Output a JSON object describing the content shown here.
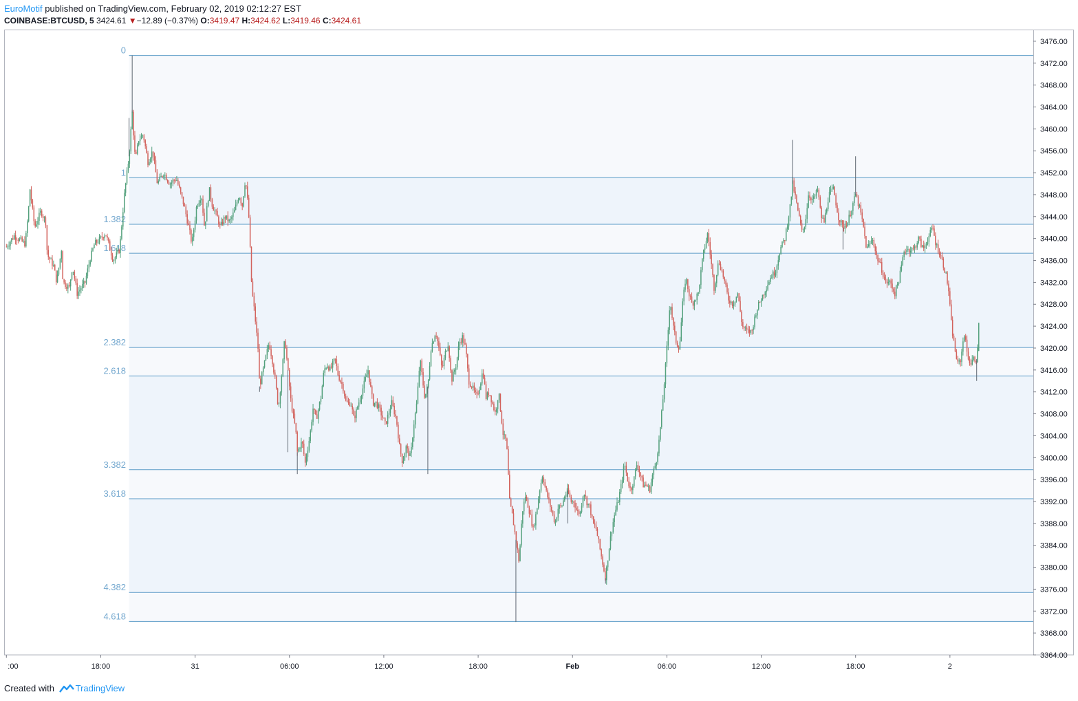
{
  "header": {
    "author": "EuroMotif",
    "published_text": " published on TradingView.com, February 02, 2019 02:12:27 EST",
    "symbol": "COINBASE:BTCUSD, 5",
    "last_price": "3424.61",
    "change": "−12.89 (−0.37%)",
    "o_label": "O:",
    "o_value": "3419.47",
    "h_label": "H:",
    "h_value": "3424.62",
    "l_label": "L:",
    "l_value": "3419.46",
    "c_label": "C:",
    "c_value": "3424.61"
  },
  "footer": {
    "created_with": "Created with",
    "brand": "TradingView"
  },
  "colors": {
    "up": "#53a07c",
    "down": "#d2625c",
    "fib_line": "#5b9bc7",
    "fib_label": "#74a8cf",
    "fib_fill": "#eef4fb"
  },
  "chart_data": {
    "type": "candlestick",
    "symbol": "COINBASE:BTCUSD",
    "interval": "5",
    "y_axis": {
      "min": 3364,
      "max": 3478,
      "ticks": [
        3364,
        3368,
        3372,
        3376,
        3380,
        3384,
        3388,
        3392,
        3396,
        3400,
        3404,
        3408,
        3412,
        3416,
        3420,
        3424,
        3428,
        3432,
        3436,
        3440,
        3444,
        3448,
        3452,
        3456,
        3460,
        3464,
        3468,
        3472,
        3476
      ],
      "tick_labels": [
        "3364.00",
        "3368.00",
        "3372.00",
        "3376.00",
        "3380.00",
        "3384.00",
        "3388.00",
        "3392.00",
        "3396.00",
        "3400.00",
        "3404.00",
        "3408.00",
        "3412.00",
        "3416.00",
        "3420.00",
        "3424.00",
        "3428.00",
        "3432.00",
        "3436.00",
        "3440.00",
        "3444.00",
        "3448.00",
        "3452.00",
        "3456.00",
        "3460.00",
        "3464.00",
        "3468.00",
        "3472.00",
        "3476.00"
      ],
      "position": "right"
    },
    "x_axis": {
      "labels": [
        ":00",
        "18:00",
        "31",
        "06:00",
        "12:00",
        "18:00",
        "Feb",
        "06:00",
        "12:00",
        "18:00",
        "2"
      ],
      "label_hours": [
        0,
        6,
        12,
        18,
        24,
        30,
        36,
        42,
        48,
        54,
        60
      ],
      "bold": [
        false,
        false,
        false,
        false,
        false,
        false,
        true,
        false,
        false,
        false,
        false
      ],
      "visible_range_hours": [
        -0.1,
        65.3
      ]
    },
    "fibonacci": {
      "levels": [
        {
          "label": "0",
          "price": 3473.4
        },
        {
          "label": "1",
          "price": 3451.1
        },
        {
          "label": "1.382",
          "price": 3442.6
        },
        {
          "label": "1.618",
          "price": 3437.3
        },
        {
          "label": "2.382",
          "price": 3420.1
        },
        {
          "label": "2.618",
          "price": 3414.9
        },
        {
          "label": "3.382",
          "price": 3397.8
        },
        {
          "label": "3.618",
          "price": 3392.5
        },
        {
          "label": "4.382",
          "price": 3375.4
        },
        {
          "label": "4.618",
          "price": 3370.1
        }
      ],
      "start_hour": 7.8,
      "label_hour": 7.6,
      "shaded_pairs": [
        [
          1,
          2
        ],
        [
          3,
          4
        ],
        [
          5,
          6
        ],
        [
          7,
          8
        ]
      ]
    },
    "price_path": [
      [
        0.0,
        3438.5
      ],
      [
        0.5,
        3440.5
      ],
      [
        1.2,
        3439
      ],
      [
        1.4,
        3445
      ],
      [
        1.5,
        3449
      ],
      [
        1.8,
        3442
      ],
      [
        2.2,
        3445
      ],
      [
        2.5,
        3443
      ],
      [
        2.6,
        3437
      ],
      [
        3.0,
        3435
      ],
      [
        3.2,
        3432
      ],
      [
        3.5,
        3438
      ],
      [
        3.6,
        3432
      ],
      [
        4.0,
        3431
      ],
      [
        4.2,
        3435
      ],
      [
        4.5,
        3430
      ],
      [
        5.0,
        3432
      ],
      [
        5.3,
        3436
      ],
      [
        5.6,
        3439
      ],
      [
        6.0,
        3440
      ],
      [
        6.3,
        3441
      ],
      [
        6.6,
        3438
      ],
      [
        6.8,
        3436
      ],
      [
        7.2,
        3438
      ],
      [
        7.5,
        3448
      ],
      [
        7.8,
        3455
      ],
      [
        8.0,
        3463
      ],
      [
        8.2,
        3454
      ],
      [
        8.4,
        3458
      ],
      [
        8.7,
        3459
      ],
      [
        9.0,
        3454
      ],
      [
        9.3,
        3456
      ],
      [
        9.6,
        3450
      ],
      [
        10.0,
        3452
      ],
      [
        10.4,
        3450
      ],
      [
        10.8,
        3451
      ],
      [
        11.0,
        3449
      ],
      [
        11.3,
        3446
      ],
      [
        11.6,
        3442
      ],
      [
        11.8,
        3439
      ],
      [
        12.1,
        3446
      ],
      [
        12.4,
        3448
      ],
      [
        12.6,
        3442
      ],
      [
        12.9,
        3449
      ],
      [
        13.1,
        3446
      ],
      [
        13.4,
        3444
      ],
      [
        13.6,
        3442
      ],
      [
        13.9,
        3444
      ],
      [
        14.2,
        3443
      ],
      [
        14.5,
        3445
      ],
      [
        14.8,
        3448
      ],
      [
        15.0,
        3446
      ],
      [
        15.2,
        3451
      ],
      [
        15.4,
        3445
      ],
      [
        15.6,
        3431
      ],
      [
        15.8,
        3426
      ],
      [
        16.0,
        3420
      ],
      [
        16.1,
        3413
      ],
      [
        16.4,
        3417
      ],
      [
        16.7,
        3421
      ],
      [
        16.9,
        3418
      ],
      [
        17.1,
        3414
      ],
      [
        17.3,
        3409
      ],
      [
        17.6,
        3418
      ],
      [
        17.7,
        3422
      ],
      [
        17.9,
        3416
      ],
      [
        18.1,
        3410
      ],
      [
        18.4,
        3405
      ],
      [
        18.5,
        3401
      ],
      [
        18.8,
        3403
      ],
      [
        19.0,
        3399
      ],
      [
        19.3,
        3404
      ],
      [
        19.5,
        3409
      ],
      [
        19.7,
        3407
      ],
      [
        20.0,
        3411
      ],
      [
        20.2,
        3416
      ],
      [
        20.4,
        3417
      ],
      [
        20.6,
        3416
      ],
      [
        20.9,
        3418
      ],
      [
        21.1,
        3415
      ],
      [
        21.4,
        3413
      ],
      [
        21.6,
        3410
      ],
      [
        21.9,
        3410
      ],
      [
        22.1,
        3407
      ],
      [
        22.3,
        3409
      ],
      [
        22.6,
        3412
      ],
      [
        22.8,
        3414
      ],
      [
        23.0,
        3416
      ],
      [
        23.3,
        3410
      ],
      [
        23.5,
        3410
      ],
      [
        23.7,
        3409
      ],
      [
        24.1,
        3406
      ],
      [
        24.3,
        3408
      ],
      [
        24.5,
        3410
      ],
      [
        24.8,
        3407
      ],
      [
        25.0,
        3402
      ],
      [
        25.2,
        3399
      ],
      [
        25.4,
        3402
      ],
      [
        25.7,
        3400
      ],
      [
        25.9,
        3406
      ],
      [
        26.1,
        3410
      ],
      [
        26.3,
        3418
      ],
      [
        26.6,
        3411
      ],
      [
        26.8,
        3413
      ],
      [
        27.0,
        3420
      ],
      [
        27.3,
        3423
      ],
      [
        27.5,
        3420
      ],
      [
        27.7,
        3416
      ],
      [
        27.9,
        3419
      ],
      [
        28.1,
        3421
      ],
      [
        28.3,
        3414
      ],
      [
        28.6,
        3417
      ],
      [
        28.8,
        3421
      ],
      [
        29.0,
        3422
      ],
      [
        29.2,
        3420
      ],
      [
        29.4,
        3414
      ],
      [
        29.6,
        3413
      ],
      [
        29.9,
        3411
      ],
      [
        30.1,
        3413
      ],
      [
        30.3,
        3416
      ],
      [
        30.5,
        3411
      ],
      [
        30.7,
        3412
      ],
      [
        30.9,
        3410
      ],
      [
        31.1,
        3408
      ],
      [
        31.3,
        3412
      ],
      [
        31.6,
        3404
      ],
      [
        31.8,
        3403
      ],
      [
        32.0,
        3392
      ],
      [
        32.2,
        3389
      ],
      [
        32.4,
        3385
      ],
      [
        32.6,
        3381
      ],
      [
        32.8,
        3390
      ],
      [
        33.0,
        3393
      ],
      [
        33.2,
        3391
      ],
      [
        33.5,
        3387
      ],
      [
        33.7,
        3390
      ],
      [
        33.9,
        3394
      ],
      [
        34.1,
        3397
      ],
      [
        34.3,
        3394
      ],
      [
        34.5,
        3392
      ],
      [
        34.7,
        3390
      ],
      [
        34.9,
        3388
      ],
      [
        35.1,
        3391
      ],
      [
        35.3,
        3391
      ],
      [
        35.5,
        3393
      ],
      [
        35.7,
        3394
      ],
      [
        35.9,
        3392
      ],
      [
        36.1,
        3392
      ],
      [
        36.3,
        3390
      ],
      [
        36.5,
        3390
      ],
      [
        36.7,
        3394
      ],
      [
        36.9,
        3392
      ],
      [
        37.1,
        3391
      ],
      [
        37.3,
        3388
      ],
      [
        37.5,
        3387
      ],
      [
        37.7,
        3384
      ],
      [
        37.9,
        3381
      ],
      [
        38.1,
        3378
      ],
      [
        38.3,
        3383
      ],
      [
        38.5,
        3387
      ],
      [
        38.7,
        3390
      ],
      [
        38.9,
        3392
      ],
      [
        39.1,
        3395
      ],
      [
        39.3,
        3399
      ],
      [
        39.5,
        3396
      ],
      [
        39.7,
        3394
      ],
      [
        39.9,
        3396
      ],
      [
        40.1,
        3399
      ],
      [
        40.3,
        3397
      ],
      [
        40.5,
        3395
      ],
      [
        40.7,
        3395
      ],
      [
        40.9,
        3394
      ],
      [
        41.1,
        3397
      ],
      [
        41.3,
        3399
      ],
      [
        41.5,
        3403
      ],
      [
        41.7,
        3409
      ],
      [
        41.9,
        3416
      ],
      [
        42.1,
        3424
      ],
      [
        42.2,
        3429
      ],
      [
        42.4,
        3424
      ],
      [
        42.6,
        3421
      ],
      [
        42.8,
        3420
      ],
      [
        43.0,
        3428
      ],
      [
        43.2,
        3433
      ],
      [
        43.4,
        3430
      ],
      [
        43.6,
        3428
      ],
      [
        43.8,
        3429
      ],
      [
        44.0,
        3430
      ],
      [
        44.3,
        3437
      ],
      [
        44.6,
        3441
      ],
      [
        44.8,
        3436
      ],
      [
        45.0,
        3431
      ],
      [
        45.3,
        3436
      ],
      [
        45.6,
        3433
      ],
      [
        45.9,
        3429
      ],
      [
        46.2,
        3428
      ],
      [
        46.5,
        3430
      ],
      [
        46.8,
        3424
      ],
      [
        47.1,
        3423
      ],
      [
        47.4,
        3423
      ],
      [
        47.7,
        3427
      ],
      [
        48.0,
        3429
      ],
      [
        48.3,
        3431
      ],
      [
        48.6,
        3433
      ],
      [
        48.9,
        3434
      ],
      [
        49.2,
        3438
      ],
      [
        49.5,
        3440
      ],
      [
        49.8,
        3445
      ],
      [
        50.0,
        3450
      ],
      [
        50.2,
        3447
      ],
      [
        50.4,
        3444
      ],
      [
        50.6,
        3441
      ],
      [
        50.8,
        3443
      ],
      [
        51.0,
        3448
      ],
      [
        51.3,
        3447
      ],
      [
        51.6,
        3449
      ],
      [
        51.8,
        3444
      ],
      [
        52.0,
        3443
      ],
      [
        52.3,
        3448
      ],
      [
        52.6,
        3449
      ],
      [
        52.9,
        3444
      ],
      [
        53.2,
        3442
      ],
      [
        53.5,
        3443
      ],
      [
        53.8,
        3446
      ],
      [
        54.0,
        3448
      ],
      [
        54.3,
        3445
      ],
      [
        54.5,
        3442
      ],
      [
        54.7,
        3438
      ],
      [
        54.9,
        3439
      ],
      [
        55.1,
        3440
      ],
      [
        55.3,
        3437
      ],
      [
        55.6,
        3435
      ],
      [
        55.9,
        3432
      ],
      [
        56.2,
        3432
      ],
      [
        56.5,
        3430
      ],
      [
        56.8,
        3433
      ],
      [
        57.1,
        3438
      ],
      [
        57.4,
        3438
      ],
      [
        57.7,
        3438
      ],
      [
        58.0,
        3440
      ],
      [
        58.3,
        3438
      ],
      [
        58.6,
        3440
      ],
      [
        58.9,
        3442
      ],
      [
        59.1,
        3439
      ],
      [
        59.4,
        3437
      ],
      [
        59.7,
        3434
      ],
      [
        59.9,
        3431
      ],
      [
        60.1,
        3424
      ],
      [
        60.3,
        3420
      ],
      [
        60.5,
        3417
      ],
      [
        60.7,
        3418
      ],
      [
        60.9,
        3423
      ],
      [
        61.1,
        3419
      ],
      [
        61.3,
        3417
      ],
      [
        61.5,
        3418
      ],
      [
        61.7,
        3418
      ],
      [
        61.9,
        3424.61
      ]
    ],
    "wick_spikes": [
      [
        8.0,
        3473.4
      ],
      [
        7.8,
        3462
      ],
      [
        16.1,
        3412
      ],
      [
        17.9,
        3401
      ],
      [
        18.5,
        3397
      ],
      [
        26.8,
        3397
      ],
      [
        32.4,
        3370
      ],
      [
        35.7,
        3388
      ],
      [
        38.1,
        3377
      ],
      [
        50.0,
        3458
      ],
      [
        54.0,
        3455
      ],
      [
        53.2,
        3438
      ],
      [
        61.7,
        3414
      ]
    ],
    "last_candle": {
      "open": 3419.47,
      "high": 3424.62,
      "low": 3419.46,
      "close": 3424.61
    }
  }
}
